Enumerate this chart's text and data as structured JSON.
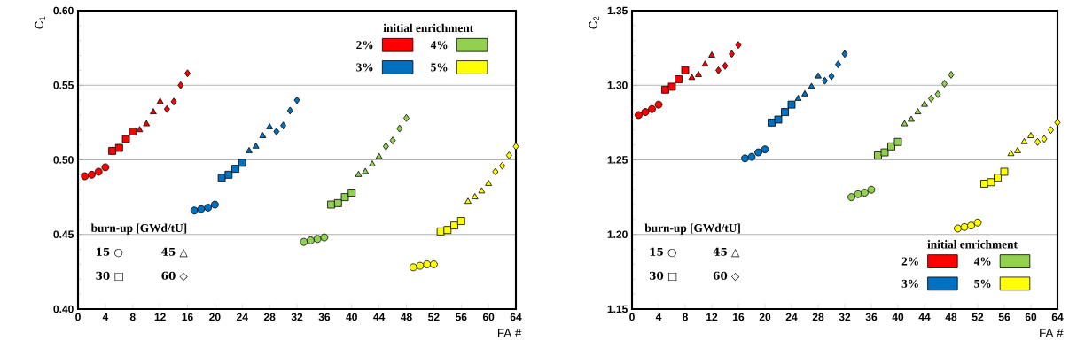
{
  "chart_data": [
    {
      "type": "scatter",
      "ylabel": "C$_{1}$",
      "xlabel": "FA #",
      "xlim": [
        0,
        64
      ],
      "xticks": [
        0,
        4,
        8,
        12,
        16,
        20,
        24,
        28,
        32,
        36,
        40,
        44,
        48,
        52,
        56,
        60,
        64
      ],
      "ylim": [
        0.4,
        0.6
      ],
      "yticks": [
        {
          "value": 0.4,
          "label": "0.40"
        },
        {
          "value": 0.45,
          "label": "0.45"
        },
        {
          "value": 0.5,
          "label": "0.50"
        },
        {
          "value": 0.55,
          "label": "0.55"
        },
        {
          "value": 0.6,
          "label": "0.60"
        }
      ],
      "grid": "y",
      "legend": "top right",
      "legend_title": "initial enrichment",
      "annotations": [
        "burn-up [GWd/tU]",
        "15 ○",
        "30 □",
        "45 △",
        "60 ◇"
      ],
      "series": [
        {
          "name": "2%",
          "color": "#ff0000",
          "marker": "circle",
          "x": [
            1,
            2,
            3,
            4
          ],
          "values": [
            0.489,
            0.49,
            0.492,
            0.495
          ]
        },
        {
          "color": "#ff0000",
          "marker": "square",
          "x": [
            5,
            6,
            7,
            8
          ],
          "values": [
            0.506,
            0.508,
            0.514,
            0.519
          ]
        },
        {
          "color": "#ff0000",
          "marker": "triangle",
          "x": [
            9,
            10,
            11,
            12
          ],
          "values": [
            0.52,
            0.524,
            0.532,
            0.539
          ]
        },
        {
          "color": "#ff0000",
          "marker": "diamond",
          "x": [
            13,
            14,
            15,
            16
          ],
          "values": [
            0.534,
            0.539,
            0.55,
            0.558
          ]
        },
        {
          "name": "3%",
          "color": "#0070c0",
          "marker": "circle",
          "x": [
            17,
            18,
            19,
            20
          ],
          "values": [
            0.466,
            0.467,
            0.468,
            0.47
          ]
        },
        {
          "color": "#0070c0",
          "marker": "square",
          "x": [
            21,
            22,
            23,
            24
          ],
          "values": [
            0.488,
            0.49,
            0.494,
            0.498
          ]
        },
        {
          "color": "#0070c0",
          "marker": "triangle",
          "x": [
            25,
            26,
            27,
            28
          ],
          "values": [
            0.506,
            0.509,
            0.516,
            0.522
          ]
        },
        {
          "color": "#0070c0",
          "marker": "diamond",
          "x": [
            29,
            30,
            31,
            32
          ],
          "values": [
            0.519,
            0.523,
            0.533,
            0.54
          ]
        },
        {
          "name": "4%",
          "color": "#92d050",
          "marker": "circle",
          "x": [
            33,
            34,
            35,
            36
          ],
          "values": [
            0.445,
            0.446,
            0.447,
            0.448
          ]
        },
        {
          "color": "#92d050",
          "marker": "square",
          "x": [
            37,
            38,
            39,
            40
          ],
          "values": [
            0.47,
            0.471,
            0.475,
            0.478
          ]
        },
        {
          "color": "#92d050",
          "marker": "triangle",
          "x": [
            41,
            42,
            43,
            44
          ],
          "values": [
            0.49,
            0.492,
            0.497,
            0.502
          ]
        },
        {
          "color": "#92d050",
          "marker": "diamond",
          "x": [
            45,
            46,
            47,
            48
          ],
          "values": [
            0.509,
            0.513,
            0.521,
            0.528
          ]
        },
        {
          "name": "5%",
          "color": "#ffff00",
          "marker": "circle",
          "x": [
            49,
            50,
            51,
            52
          ],
          "values": [
            0.428,
            0.429,
            0.43,
            0.43
          ]
        },
        {
          "color": "#ffff00",
          "marker": "square",
          "x": [
            53,
            54,
            55,
            56
          ],
          "values": [
            0.452,
            0.453,
            0.456,
            0.459
          ]
        },
        {
          "color": "#ffff00",
          "marker": "triangle",
          "x": [
            57,
            58,
            59,
            60
          ],
          "values": [
            0.472,
            0.475,
            0.479,
            0.484
          ]
        },
        {
          "color": "#ffff00",
          "marker": "diamond",
          "x": [
            61,
            62,
            63,
            64
          ],
          "values": [
            0.492,
            0.496,
            0.503,
            0.509
          ]
        }
      ]
    },
    {
      "type": "scatter",
      "ylabel": "C$_{2}$",
      "xlabel": "FA #",
      "xlim": [
        0,
        64
      ],
      "xticks": [
        0,
        4,
        8,
        12,
        16,
        20,
        24,
        28,
        32,
        36,
        40,
        44,
        48,
        52,
        56,
        60,
        64
      ],
      "ylim": [
        1.15,
        1.35
      ],
      "yticks": [
        {
          "value": 1.15,
          "label": "1.15"
        },
        {
          "value": 1.2,
          "label": "1.20"
        },
        {
          "value": 1.25,
          "label": "1.25"
        },
        {
          "value": 1.3,
          "label": "1.30"
        },
        {
          "value": 1.35,
          "label": "1.35"
        }
      ],
      "grid": "y",
      "legend": "bottom right",
      "legend_title": "initial enrichment",
      "annotations": [
        "burn-up [GWd/tU]",
        "15 ○",
        "30 □",
        "45 △",
        "60 ◇"
      ],
      "series": [
        {
          "name": "2%",
          "color": "#ff0000",
          "marker": "circle",
          "x": [
            1,
            2,
            3,
            4
          ],
          "values": [
            1.28,
            1.282,
            1.284,
            1.287
          ]
        },
        {
          "color": "#ff0000",
          "marker": "square",
          "x": [
            5,
            6,
            7,
            8
          ],
          "values": [
            1.297,
            1.299,
            1.304,
            1.31
          ]
        },
        {
          "color": "#ff0000",
          "marker": "triangle",
          "x": [
            9,
            10,
            11,
            12
          ],
          "values": [
            1.305,
            1.307,
            1.314,
            1.32
          ]
        },
        {
          "color": "#ff0000",
          "marker": "diamond",
          "x": [
            13,
            14,
            15,
            16
          ],
          "values": [
            1.31,
            1.313,
            1.321,
            1.327
          ]
        },
        {
          "name": "3%",
          "color": "#0070c0",
          "marker": "circle",
          "x": [
            17,
            18,
            19,
            20
          ],
          "values": [
            1.251,
            1.252,
            1.255,
            1.257
          ]
        },
        {
          "color": "#0070c0",
          "marker": "square",
          "x": [
            21,
            22,
            23,
            24
          ],
          "values": [
            1.275,
            1.277,
            1.282,
            1.287
          ]
        },
        {
          "color": "#0070c0",
          "marker": "triangle",
          "x": [
            25,
            26,
            27,
            28
          ],
          "values": [
            1.291,
            1.294,
            1.299,
            1.306
          ]
        },
        {
          "color": "#0070c0",
          "marker": "diamond",
          "x": [
            29,
            30,
            31,
            32
          ],
          "values": [
            1.303,
            1.306,
            1.314,
            1.321
          ]
        },
        {
          "name": "4%",
          "color": "#92d050",
          "marker": "circle",
          "x": [
            33,
            34,
            35,
            36
          ],
          "values": [
            1.225,
            1.227,
            1.228,
            1.23
          ]
        },
        {
          "color": "#92d050",
          "marker": "square",
          "x": [
            37,
            38,
            39,
            40
          ],
          "values": [
            1.253,
            1.255,
            1.259,
            1.262
          ]
        },
        {
          "color": "#92d050",
          "marker": "triangle",
          "x": [
            41,
            42,
            43,
            44
          ],
          "values": [
            1.274,
            1.277,
            1.282,
            1.287
          ]
        },
        {
          "color": "#92d050",
          "marker": "diamond",
          "x": [
            45,
            46,
            47,
            48
          ],
          "values": [
            1.291,
            1.294,
            1.301,
            1.307
          ]
        },
        {
          "name": "5%",
          "color": "#ffff00",
          "marker": "circle",
          "x": [
            49,
            50,
            51,
            52
          ],
          "values": [
            1.204,
            1.205,
            1.206,
            1.208
          ]
        },
        {
          "color": "#ffff00",
          "marker": "square",
          "x": [
            53,
            54,
            55,
            56
          ],
          "values": [
            1.234,
            1.235,
            1.238,
            1.242
          ]
        },
        {
          "color": "#ffff00",
          "marker": "triangle",
          "x": [
            57,
            58,
            59,
            60
          ],
          "values": [
            1.254,
            1.256,
            1.262,
            1.266
          ]
        },
        {
          "color": "#ffff00",
          "marker": "diamond",
          "x": [
            61,
            62,
            63,
            64
          ],
          "values": [
            1.262,
            1.264,
            1.27,
            1.275
          ]
        }
      ]
    }
  ]
}
